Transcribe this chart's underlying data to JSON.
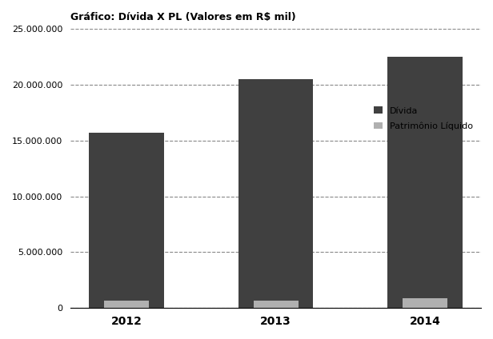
{
  "title": "Gráfico: Dívida X PL (Valores em R$ mil)",
  "categories": [
    "2012",
    "2013",
    "2014"
  ],
  "divida": [
    15700000,
    20500000,
    22500000
  ],
  "patrimonio": [
    700000,
    700000,
    900000
  ],
  "bar_color_divida": "#404040",
  "bar_color_patrimonio": "#b0b0b0",
  "ylim": [
    0,
    25000000
  ],
  "yticks": [
    0,
    5000000,
    10000000,
    15000000,
    20000000,
    25000000
  ],
  "ytick_labels": [
    "0",
    "5.000.000",
    "10.000.000",
    "15.000.000",
    "20.000.000",
    "25.000.000"
  ],
  "legend_divida": "Dívida",
  "legend_patrimonio": "Patrimônio Líquido",
  "background_color": "#ffffff",
  "grid_color": "#888888",
  "bar_width": 0.5,
  "title_fontsize": 9,
  "tick_fontsize": 8,
  "legend_fontsize": 8
}
